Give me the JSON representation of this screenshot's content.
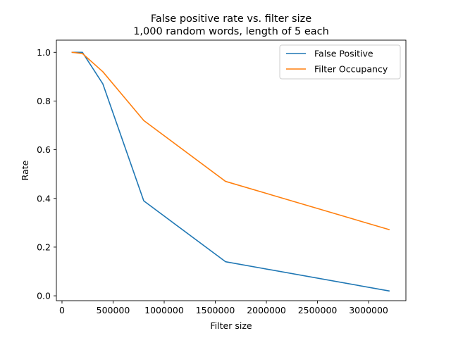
{
  "chart_data": {
    "type": "line",
    "title": "False positive rate vs. filter size",
    "subtitle": "1,000 random words, length of 5 each",
    "xlabel": "Filter size",
    "ylabel": "Rate",
    "xlim": [
      -55000,
      3365000
    ],
    "ylim": [
      -0.02,
      1.05
    ],
    "xticks": [
      0,
      500000,
      1000000,
      1500000,
      2000000,
      2500000,
      3000000
    ],
    "xtick_labels": [
      "0",
      "500000",
      "1000000",
      "1500000",
      "2000000",
      "2500000",
      "3000000"
    ],
    "yticks": [
      0.0,
      0.2,
      0.4,
      0.6,
      0.8,
      1.0
    ],
    "ytick_labels": [
      "0.0",
      "0.2",
      "0.4",
      "0.6",
      "0.8",
      "1.0"
    ],
    "grid": false,
    "legend": "top-right",
    "series": [
      {
        "name": "False Positive",
        "color": "#1f77b4",
        "x": [
          100000,
          200000,
          400000,
          800000,
          1600000,
          3200000
        ],
        "y": [
          1.0,
          1.0,
          0.87,
          0.39,
          0.14,
          0.02
        ]
      },
      {
        "name": "Filter Occupancy",
        "color": "#ff7f0e",
        "x": [
          100000,
          200000,
          400000,
          800000,
          1600000,
          3200000
        ],
        "y": [
          1.0,
          0.995,
          0.92,
          0.72,
          0.47,
          0.272
        ]
      }
    ]
  }
}
